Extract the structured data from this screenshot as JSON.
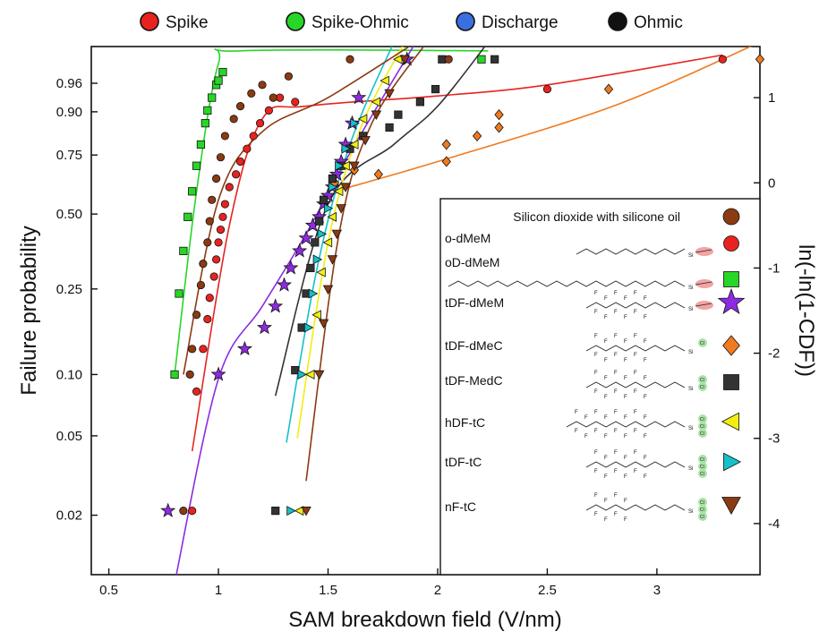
{
  "chart_data": {
    "type": "scatter",
    "title": "",
    "xlabel": "SAM breakdown field (V/nm)",
    "ylabel": "Failure probability",
    "ylabel_right": "ln(-ln(1-CDF))",
    "xlim": [
      0.42,
      3.47
    ],
    "ylim_weibull": [
      -4.6,
      1.6
    ],
    "x_ticks": [
      "0.5",
      "1",
      "1.5",
      "2",
      "2.5",
      "3"
    ],
    "x_tick_values": [
      0.5,
      1,
      1.5,
      2,
      2.5,
      3
    ],
    "y_ticks_left": [
      "0.96",
      "0.90",
      "0.75",
      "0.50",
      "0.25",
      "0.10",
      "0.05",
      "0.02"
    ],
    "y_tick_values_left": [
      0.96,
      0.9,
      0.75,
      0.5,
      0.25,
      0.1,
      0.05,
      0.02
    ],
    "y_ticks_right": [
      "1",
      "0",
      "-1",
      "-2",
      "-3",
      "-4"
    ],
    "y_tick_values_right": [
      1,
      0,
      -1,
      -2,
      -3,
      -4
    ],
    "mode_legend": [
      {
        "label": "Spike",
        "color": "#e8231f"
      },
      {
        "label": "Spike-Ohmic",
        "color": "#27d627"
      },
      {
        "label": "Discharge",
        "color": "#3a6fe0"
      },
      {
        "label": "Ohmic",
        "color": "#111111"
      }
    ],
    "sam_legend_title": "Silicon dioxide with silicone oil",
    "series": [
      {
        "name": "o-dMeM",
        "marker": "circle",
        "color": "#e8231f",
        "x": [
          0.88,
          0.9,
          0.93,
          0.95,
          0.96,
          0.98,
          0.99,
          1.0,
          1.01,
          1.02,
          1.03,
          1.05,
          1.08,
          1.1,
          1.13,
          1.16,
          1.19,
          1.23,
          1.28,
          1.35,
          2.5,
          3.3
        ],
        "y": [
          -3.85,
          -2.45,
          -1.95,
          -1.6,
          -1.35,
          -1.1,
          -0.9,
          -0.7,
          -0.55,
          -0.4,
          -0.25,
          -0.05,
          0.1,
          0.25,
          0.4,
          0.55,
          0.7,
          0.85,
          1.0,
          0.95,
          1.1,
          1.45
        ],
        "fit_x": [
          0.88,
          1.05,
          1.2,
          1.4,
          2.0,
          2.5,
          3.3
        ],
        "fit_y": [
          -3.15,
          -0.5,
          0.75,
          0.9,
          1.02,
          1.15,
          1.5
        ]
      },
      {
        "name": "oD-dMeM",
        "marker": "square",
        "color": "#27d627",
        "x": [
          0.8,
          0.82,
          0.84,
          0.86,
          0.88,
          0.9,
          0.92,
          0.94,
          0.95,
          0.97,
          0.99,
          1.0,
          1.02,
          2.2
        ],
        "y": [
          -2.25,
          -1.3,
          -0.8,
          -0.4,
          -0.1,
          0.2,
          0.45,
          0.7,
          0.85,
          1.0,
          1.15,
          1.2,
          1.3,
          1.45
        ],
        "fit_x": [
          0.8,
          0.9,
          1.0,
          1.1,
          2.23
        ],
        "fit_y": [
          -2.25,
          -0.1,
          1.4,
          1.55,
          1.55
        ]
      },
      {
        "name": "tDF-dMeM",
        "marker": "star",
        "color": "#8d2be2",
        "x": [
          0.77,
          1.0,
          1.12,
          1.21,
          1.26,
          1.3,
          1.33,
          1.37,
          1.4,
          1.43,
          1.46,
          1.48,
          1.5,
          1.52,
          1.54,
          1.56,
          1.58,
          1.61,
          1.64,
          1.86
        ],
        "y": [
          -3.85,
          -2.25,
          -1.95,
          -1.7,
          -1.45,
          -1.2,
          -1.0,
          -0.8,
          -0.65,
          -0.5,
          -0.4,
          -0.25,
          -0.15,
          -0.05,
          0.1,
          0.25,
          0.45,
          0.7,
          1.0,
          1.45
        ],
        "fit_x": [
          0.8,
          1.0,
          1.2,
          1.4,
          1.6,
          1.9
        ],
        "fit_y": [
          -4.7,
          -2.3,
          -1.45,
          -0.6,
          0.35,
          1.65
        ]
      },
      {
        "name": "tDF-dMeC",
        "marker": "diamond",
        "color": "#f07a1e",
        "x": [
          1.53,
          1.62,
          1.73,
          2.04,
          2.04,
          2.18,
          2.28,
          2.28,
          2.78,
          3.47
        ],
        "y": [
          0.0,
          0.15,
          0.1,
          0.25,
          0.45,
          0.55,
          0.65,
          0.8,
          1.1,
          1.45
        ],
        "fit_x": [
          1.53,
          2.0,
          2.8,
          3.47
        ],
        "fit_y": [
          -0.1,
          0.25,
          0.9,
          1.65
        ]
      },
      {
        "name": "tDF-MedC",
        "marker": "square",
        "color": "#333333",
        "x": [
          1.26,
          1.35,
          1.38,
          1.4,
          1.42,
          1.44,
          1.46,
          1.48,
          1.52,
          1.56,
          1.6,
          1.66,
          1.78,
          1.82,
          1.92,
          1.99,
          2.02,
          2.26
        ],
        "y": [
          -3.85,
          -2.2,
          -1.7,
          -1.3,
          -1.0,
          -0.7,
          -0.45,
          -0.2,
          0.05,
          0.2,
          0.4,
          0.55,
          0.65,
          0.8,
          0.95,
          1.1,
          1.45,
          1.45
        ],
        "fit_x": [
          1.26,
          1.5,
          1.8,
          2.0,
          2.23
        ],
        "fit_y": [
          -2.5,
          -0.25,
          0.45,
          0.9,
          1.65
        ]
      },
      {
        "name": "hDF-tC",
        "marker": "triangle-left",
        "color": "#f2ee10",
        "x": [
          1.37,
          1.42,
          1.45,
          1.47,
          1.5,
          1.52,
          1.55,
          1.58,
          1.62,
          1.66,
          1.72,
          1.76,
          1.82
        ],
        "y": [
          -3.85,
          -2.25,
          -1.55,
          -1.05,
          -0.7,
          -0.4,
          -0.1,
          0.2,
          0.45,
          0.75,
          0.95,
          1.2,
          1.45
        ],
        "fit_x": [
          1.36,
          1.5,
          1.65,
          1.85
        ],
        "fit_y": [
          -3.0,
          -0.7,
          0.65,
          1.65
        ]
      },
      {
        "name": "tDF-tC",
        "marker": "triangle-right",
        "color": "#16c0c9",
        "x": [
          1.33,
          1.38,
          1.41,
          1.43,
          1.45,
          1.47,
          1.5,
          1.52,
          1.55,
          1.58,
          1.62
        ],
        "y": [
          -3.85,
          -2.25,
          -1.7,
          -1.3,
          -0.9,
          -0.6,
          -0.3,
          -0.05,
          0.2,
          0.4,
          0.7
        ],
        "fit_x": [
          1.31,
          1.45,
          1.6,
          1.8
        ],
        "fit_y": [
          -3.05,
          -1.0,
          0.45,
          1.65
        ]
      },
      {
        "name": "nF-tC",
        "marker": "triangle-down",
        "color": "#8b3a12",
        "x": [
          1.4,
          1.46,
          1.48,
          1.5,
          1.52,
          1.54,
          1.56,
          1.58,
          1.62,
          1.67,
          1.72,
          1.78,
          1.85
        ],
        "y": [
          -3.85,
          -2.25,
          -1.65,
          -1.25,
          -0.9,
          -0.6,
          -0.3,
          -0.05,
          0.2,
          0.5,
          0.8,
          1.05,
          1.45
        ],
        "fit_x": [
          1.4,
          1.55,
          1.7,
          1.95
        ],
        "fit_y": [
          -3.5,
          -0.6,
          0.7,
          1.65
        ]
      },
      {
        "name": "Silicon dioxide with silicone oil",
        "marker": "circle",
        "color": "#8b3a12",
        "x": [
          0.84,
          0.87,
          0.88,
          0.9,
          0.92,
          0.93,
          0.95,
          0.96,
          0.97,
          0.99,
          1.01,
          1.03,
          1.07,
          1.1,
          1.15,
          1.2,
          1.25,
          1.32,
          1.6,
          2.05
        ],
        "y": [
          -3.85,
          -2.25,
          -1.95,
          -1.55,
          -1.2,
          -0.95,
          -0.7,
          -0.45,
          -0.2,
          0.05,
          0.3,
          0.55,
          0.75,
          0.9,
          1.05,
          1.15,
          1.0,
          1.25,
          1.45,
          1.45
        ],
        "fit_x": [
          0.84,
          1.0,
          1.2,
          1.5,
          1.9
        ],
        "fit_y": [
          -2.25,
          -0.2,
          0.6,
          1.0,
          1.65
        ]
      }
    ],
    "legend_position": "bottom-right"
  }
}
